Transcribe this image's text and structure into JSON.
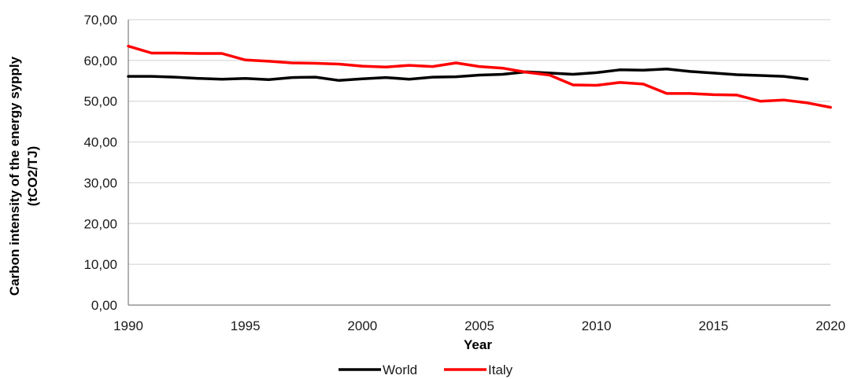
{
  "chart_data": {
    "type": "line",
    "title": "",
    "xlabel": "Year",
    "ylabel_line1": "Carbon intensity of the energy sypply",
    "ylabel_line2": "(tCO2/TJ)",
    "xlim": [
      1990,
      2020
    ],
    "ylim": [
      0,
      70
    ],
    "x_ticks": [
      "1990",
      "1995",
      "2000",
      "2005",
      "2010",
      "2015",
      "2020"
    ],
    "y_ticks": [
      "0,00",
      "10,00",
      "20,00",
      "30,00",
      "40,00",
      "50,00",
      "60,00",
      "70,00"
    ],
    "grid": "horizontal",
    "legend_position": "bottom",
    "series": [
      {
        "name": "World",
        "color": "#000000",
        "x": [
          1990,
          1991,
          1992,
          1993,
          1994,
          1995,
          1996,
          1997,
          1998,
          1999,
          2000,
          2001,
          2002,
          2003,
          2004,
          2005,
          2006,
          2007,
          2008,
          2009,
          2010,
          2011,
          2012,
          2013,
          2014,
          2015,
          2016,
          2017,
          2018,
          2019
        ],
        "values": [
          56.1,
          56.1,
          55.9,
          55.6,
          55.4,
          55.6,
          55.3,
          55.8,
          55.9,
          55.1,
          55.5,
          55.8,
          55.4,
          55.9,
          56.0,
          56.4,
          56.6,
          57.2,
          56.9,
          56.6,
          57.0,
          57.7,
          57.6,
          57.9,
          57.3,
          56.9,
          56.5,
          56.3,
          56.1,
          55.4
        ]
      },
      {
        "name": "Italy",
        "color": "#ff0000",
        "x": [
          1990,
          1991,
          1992,
          1993,
          1994,
          1995,
          1996,
          1997,
          1998,
          1999,
          2000,
          2001,
          2002,
          2003,
          2004,
          2005,
          2006,
          2007,
          2008,
          2009,
          2010,
          2011,
          2012,
          2013,
          2014,
          2015,
          2016,
          2017,
          2018,
          2019,
          2020
        ],
        "values": [
          63.5,
          61.8,
          61.8,
          61.7,
          61.7,
          60.1,
          59.8,
          59.4,
          59.3,
          59.1,
          58.6,
          58.4,
          58.8,
          58.5,
          59.4,
          58.5,
          58.1,
          57.1,
          56.4,
          54.0,
          53.9,
          54.6,
          54.2,
          51.9,
          51.9,
          51.6,
          51.5,
          50.0,
          50.3,
          49.6,
          48.5
        ]
      }
    ]
  }
}
